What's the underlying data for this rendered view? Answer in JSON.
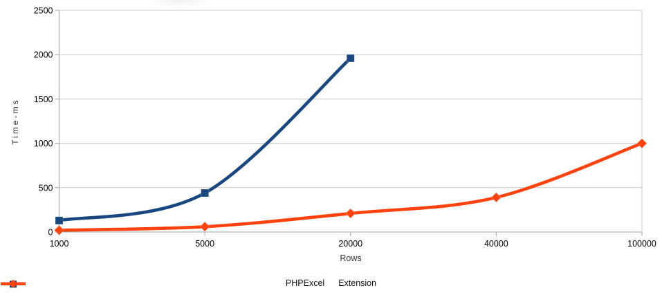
{
  "page": {
    "background": "#ffffff"
  },
  "chart_data": {
    "type": "line",
    "title": "",
    "categories": [
      "1000",
      "5000",
      "20000",
      "40000",
      "100000"
    ],
    "series": [
      {
        "name": "PHPExcel",
        "color": "#17477E",
        "marker": "square",
        "values": [
          130,
          440,
          1960,
          null,
          null
        ]
      },
      {
        "name": "Extension",
        "color": "#FF420E",
        "marker": "diamond",
        "values": [
          20,
          60,
          210,
          390,
          1000
        ]
      }
    ],
    "xlabel": "Rows",
    "ylabel": "Time-ms",
    "ylim": [
      0,
      2500
    ],
    "ytick_step": 500,
    "yticks": [
      "0",
      "500",
      "1000",
      "1500",
      "2000",
      "2500"
    ],
    "grid": "horizontal-only",
    "legend_position": "bottom",
    "line_smooth": true,
    "axis_color": "#B3B3B3",
    "grid_color": "#C9C9C9",
    "tick_label_color": "#000000"
  }
}
